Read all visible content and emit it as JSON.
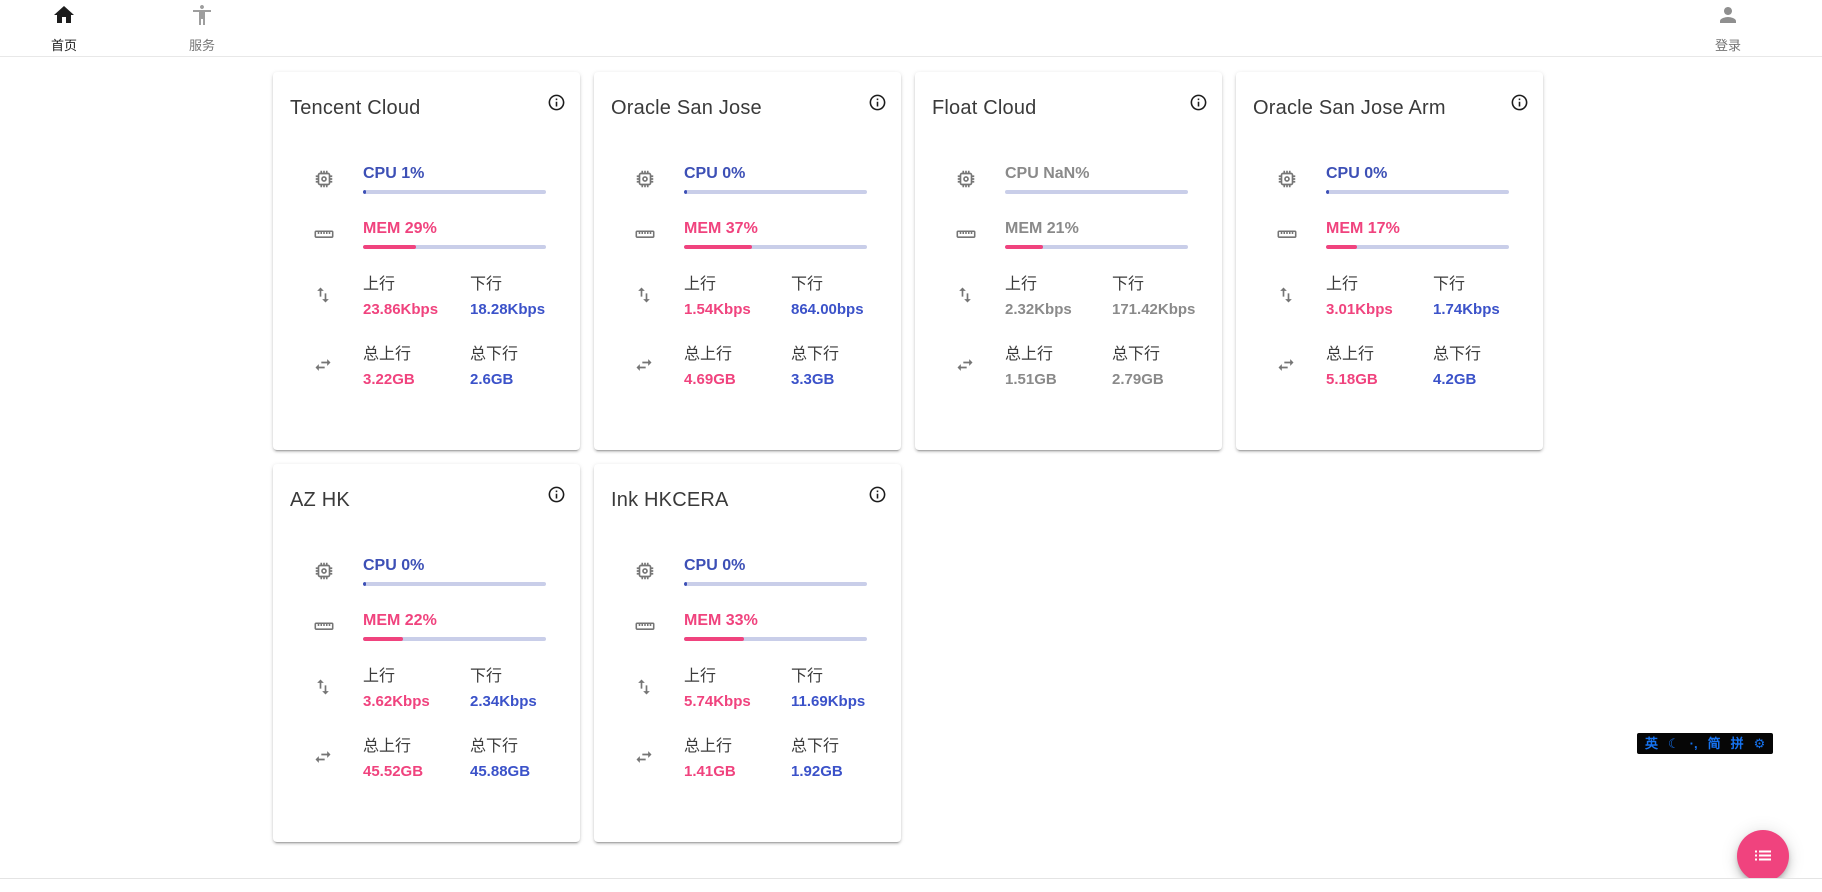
{
  "navbar": {
    "home": {
      "label": "首页"
    },
    "services": {
      "label": "服务"
    },
    "login": {
      "label": "登录"
    }
  },
  "labels": {
    "up": "上行",
    "down": "下行",
    "total_up": "总上行",
    "total_down": "总下行"
  },
  "servers": [
    {
      "name": "Tencent Cloud",
      "cpu_text": "CPU 1%",
      "cpu_pct": 1,
      "mem_text": "MEM 29%",
      "mem_pct": 29,
      "up": "23.86Kbps",
      "down": "18.28Kbps",
      "total_up": "3.22GB",
      "total_down": "2.6GB",
      "online": true
    },
    {
      "name": "Oracle San Jose",
      "cpu_text": "CPU 0%",
      "cpu_pct": 0,
      "mem_text": "MEM 37%",
      "mem_pct": 37,
      "up": "1.54Kbps",
      "down": "864.00bps",
      "total_up": "4.69GB",
      "total_down": "3.3GB",
      "online": true
    },
    {
      "name": "Float Cloud",
      "cpu_text": "CPU NaN%",
      "cpu_pct": null,
      "mem_text": "MEM 21%",
      "mem_pct": 21,
      "up": "2.32Kbps",
      "down": "171.42Kbps",
      "total_up": "1.51GB",
      "total_down": "2.79GB",
      "online": false
    },
    {
      "name": "Oracle San Jose Arm",
      "cpu_text": "CPU 0%",
      "cpu_pct": 0,
      "mem_text": "MEM 17%",
      "mem_pct": 17,
      "up": "3.01Kbps",
      "down": "1.74Kbps",
      "total_up": "5.18GB",
      "total_down": "4.2GB",
      "online": true
    },
    {
      "name": "AZ HK",
      "cpu_text": "CPU 0%",
      "cpu_pct": 0,
      "mem_text": "MEM 22%",
      "mem_pct": 22,
      "up": "3.62Kbps",
      "down": "2.34Kbps",
      "total_up": "45.52GB",
      "total_down": "45.88GB",
      "online": true
    },
    {
      "name": "Ink HKCERA",
      "cpu_text": "CPU 0%",
      "cpu_pct": 0,
      "mem_text": "MEM 33%",
      "mem_pct": 33,
      "up": "5.74Kbps",
      "down": "11.69Kbps",
      "total_up": "1.41GB",
      "total_down": "1.92GB",
      "online": true
    }
  ],
  "ime_bar": {
    "items": [
      "英",
      "☾",
      "·,",
      "简",
      "拼",
      "⚙"
    ]
  },
  "colors": {
    "blue": "#3d50b6",
    "blue_bright": "#3b52c9",
    "pink": "#f0437e",
    "track": "#c9cee9"
  }
}
